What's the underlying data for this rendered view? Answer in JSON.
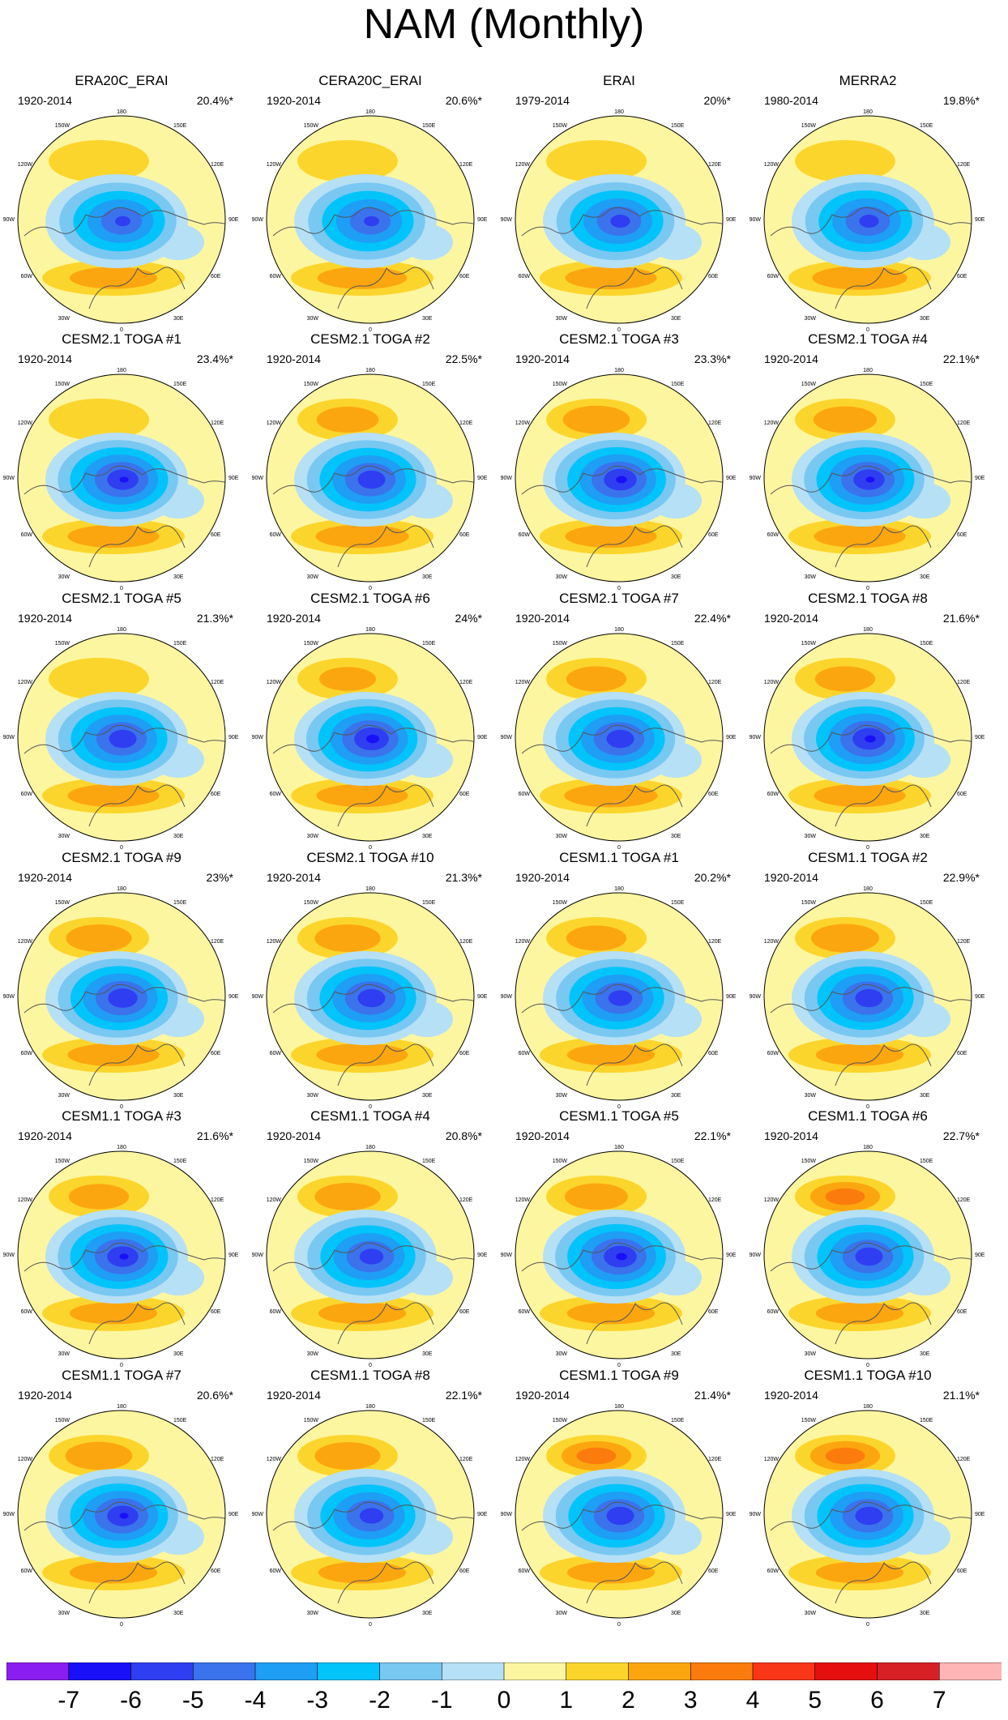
{
  "title": "NAM (Monthly)",
  "chart_data": {
    "type": "heatmap",
    "title": "NAM (Monthly)",
    "description_kind": "polar stereographic regression maps of NAM pattern",
    "longitude_labels": [
      "180",
      "150E",
      "120E",
      "90E",
      "60E",
      "30E",
      "0",
      "30W",
      "60W",
      "90W",
      "120W",
      "150W"
    ],
    "colorbar": {
      "ticks": [
        -7,
        -6,
        -5,
        -4,
        -3,
        -2,
        -1,
        0,
        1,
        2,
        3,
        4,
        5,
        6,
        7
      ],
      "tick_labels": [
        "-7",
        "-6",
        "-5",
        "-4",
        "-3",
        "-2",
        "-1",
        "0",
        "1",
        "2",
        "3",
        "4",
        "5",
        "6",
        "7"
      ],
      "colors": [
        "#8a1ef0",
        "#1a10f7",
        "#2f3ef0",
        "#3a73ec",
        "#1e9ef5",
        "#00c4fa",
        "#78c8f2",
        "#b6e0f5",
        "#fdf6a0",
        "#fcd52c",
        "#fca60f",
        "#fb7c0c",
        "#f93618",
        "#e60f0f",
        "#d62026",
        "#ffb5b5"
      ]
    },
    "panels": [
      {
        "name": "ERA20C_ERAI",
        "period": "1920-2014",
        "variance": "20.4%*",
        "neg_max": 5.2,
        "pos_pac": 1.8,
        "pos_atl": 2.0
      },
      {
        "name": "CERA20C_ERAI",
        "period": "1920-2014",
        "variance": "20.6%*",
        "neg_max": 5.2,
        "pos_pac": 1.8,
        "pos_atl": 2.1
      },
      {
        "name": "ERAI",
        "period": "1979-2014",
        "variance": "20%*",
        "neg_max": 5.4,
        "pos_pac": 1.6,
        "pos_atl": 2.2
      },
      {
        "name": "MERRA2",
        "period": "1980-2014",
        "variance": "19.8%*",
        "neg_max": 5.4,
        "pos_pac": 1.8,
        "pos_atl": 2.4
      },
      {
        "name": "CESM2.1 TOGA #1",
        "period": "1920-2014",
        "variance": "23.4%*",
        "neg_max": 6.0,
        "pos_pac": 1.9,
        "pos_atl": 2.2
      },
      {
        "name": "CESM2.1 TOGA #2",
        "period": "1920-2014",
        "variance": "22.5%*",
        "neg_max": 5.8,
        "pos_pac": 2.3,
        "pos_atl": 2.3
      },
      {
        "name": "CESM2.1 TOGA #3",
        "period": "1920-2014",
        "variance": "23.3%*",
        "neg_max": 6.1,
        "pos_pac": 2.7,
        "pos_atl": 2.2
      },
      {
        "name": "CESM2.1 TOGA #4",
        "period": "1920-2014",
        "variance": "22.1%*",
        "neg_max": 6.0,
        "pos_pac": 2.4,
        "pos_atl": 2.2
      },
      {
        "name": "CESM2.1 TOGA #5",
        "period": "1920-2014",
        "variance": "21.3%*",
        "neg_max": 5.8,
        "pos_pac": 1.9,
        "pos_atl": 2.2
      },
      {
        "name": "CESM2.1 TOGA #6",
        "period": "1920-2014",
        "variance": "24%*",
        "neg_max": 6.2,
        "pos_pac": 2.0,
        "pos_atl": 2.2
      },
      {
        "name": "CESM2.1 TOGA #7",
        "period": "1920-2014",
        "variance": "22.4%*",
        "neg_max": 5.8,
        "pos_pac": 2.2,
        "pos_atl": 2.3
      },
      {
        "name": "CESM2.1 TOGA #8",
        "period": "1920-2014",
        "variance": "21.6%*",
        "neg_max": 6.1,
        "pos_pac": 2.2,
        "pos_atl": 2.2
      },
      {
        "name": "CESM2.1 TOGA #9",
        "period": "1920-2014",
        "variance": "23%*",
        "neg_max": 5.9,
        "pos_pac": 2.6,
        "pos_atl": 2.2
      },
      {
        "name": "CESM2.1 TOGA #10",
        "period": "1920-2014",
        "variance": "21.3%*",
        "neg_max": 5.8,
        "pos_pac": 2.6,
        "pos_atl": 2.2
      },
      {
        "name": "CESM1.1 TOGA #1",
        "period": "1920-2014",
        "variance": "20.2%*",
        "neg_max": 5.6,
        "pos_pac": 2.2,
        "pos_atl": 2.0
      },
      {
        "name": "CESM1.1 TOGA #2",
        "period": "1920-2014",
        "variance": "22.9%*",
        "neg_max": 5.8,
        "pos_pac": 2.8,
        "pos_atl": 2.0
      },
      {
        "name": "CESM1.1 TOGA #3",
        "period": "1920-2014",
        "variance": "21.6%*",
        "neg_max": 6.0,
        "pos_pac": 2.2,
        "pos_atl": 2.0
      },
      {
        "name": "CESM1.1 TOGA #4",
        "period": "1920-2014",
        "variance": "20.8%*",
        "neg_max": 5.6,
        "pos_pac": 2.6,
        "pos_atl": 2.0
      },
      {
        "name": "CESM1.1 TOGA #5",
        "period": "1920-2014",
        "variance": "22.1%*",
        "neg_max": 6.1,
        "pos_pac": 2.4,
        "pos_atl": 2.0
      },
      {
        "name": "CESM1.1 TOGA #6",
        "period": "1920-2014",
        "variance": "22.7%*",
        "neg_max": 5.8,
        "pos_pac": 3.0,
        "pos_atl": 2.0
      },
      {
        "name": "CESM1.1 TOGA #7",
        "period": "1920-2014",
        "variance": "20.6%*",
        "neg_max": 6.0,
        "pos_pac": 2.7,
        "pos_atl": 2.0
      },
      {
        "name": "CESM1.1 TOGA #8",
        "period": "1920-2014",
        "variance": "22.1%*",
        "neg_max": 5.6,
        "pos_pac": 2.6,
        "pos_atl": 2.0
      },
      {
        "name": "CESM1.1 TOGA #9",
        "period": "1920-2014",
        "variance": "21.4%*",
        "neg_max": 5.8,
        "pos_pac": 3.0,
        "pos_atl": 2.0
      },
      {
        "name": "CESM1.1 TOGA #10",
        "period": "1920-2014",
        "variance": "21.1%*",
        "neg_max": 5.8,
        "pos_pac": 3.0,
        "pos_atl": 2.0
      }
    ]
  }
}
